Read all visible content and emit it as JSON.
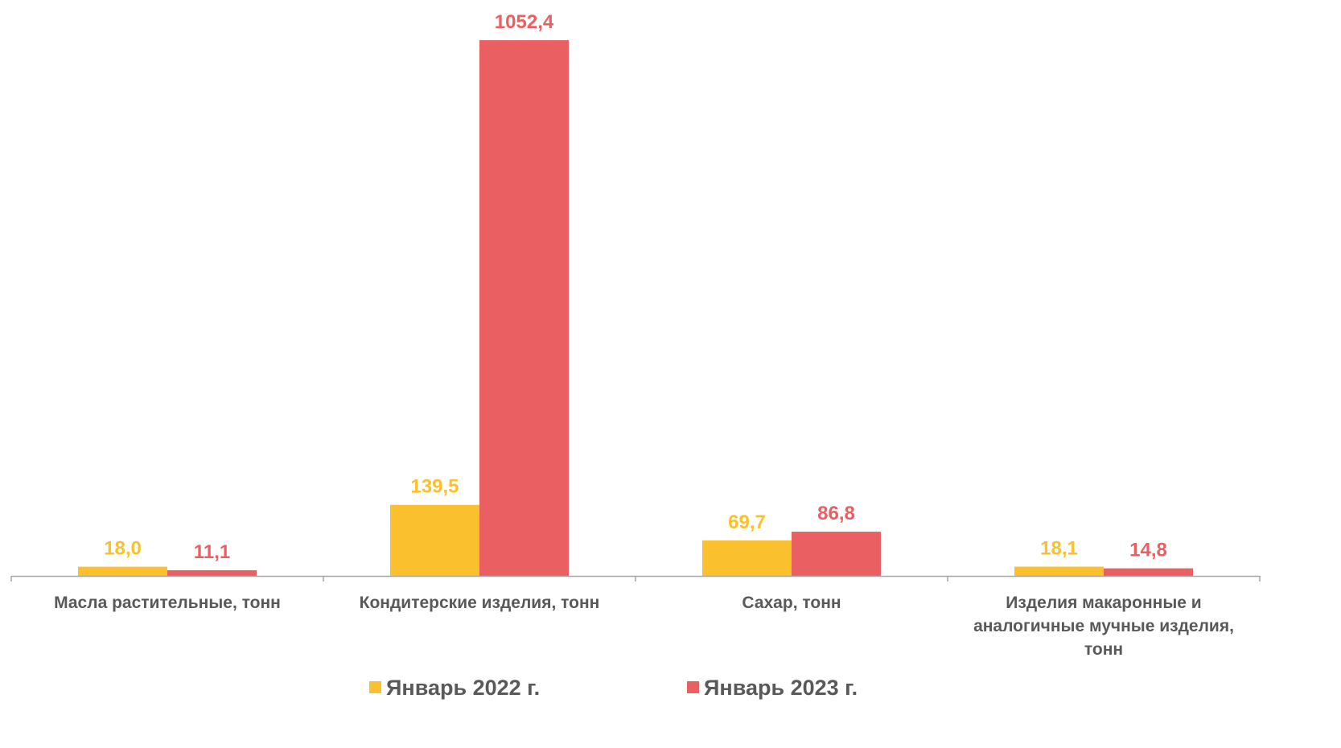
{
  "chart_data": {
    "type": "bar",
    "title": "",
    "xlabel": "",
    "ylabel": "",
    "categories": [
      [
        "Масла растительные, тонн"
      ],
      [
        "Кондитерские изделия, тонн"
      ],
      [
        "Сахар, тонн"
      ],
      [
        "Изделия макаронные и",
        "аналогичные мучные изделия,",
        "тонн"
      ]
    ],
    "series": [
      {
        "name": "Январь 2022 г.",
        "color": "#FBC02D",
        "values": [
          18.0,
          139.5,
          69.7,
          18.1
        ],
        "labels": [
          "18,0",
          "139,5",
          "69,7",
          "18,1"
        ]
      },
      {
        "name": "Январь 2023 г.",
        "color": "#EA5F62",
        "values": [
          11.1,
          1052.4,
          86.8,
          14.8
        ],
        "labels": [
          "11,1",
          "1052,4",
          "86,8",
          "14,8"
        ]
      }
    ],
    "ylim": [
      0,
      1052.4
    ],
    "grid": false,
    "legend_position": "bottom",
    "axis_color": "#A6A6A6",
    "category_label_color": "#595959",
    "legend_text_color": "#595959"
  }
}
